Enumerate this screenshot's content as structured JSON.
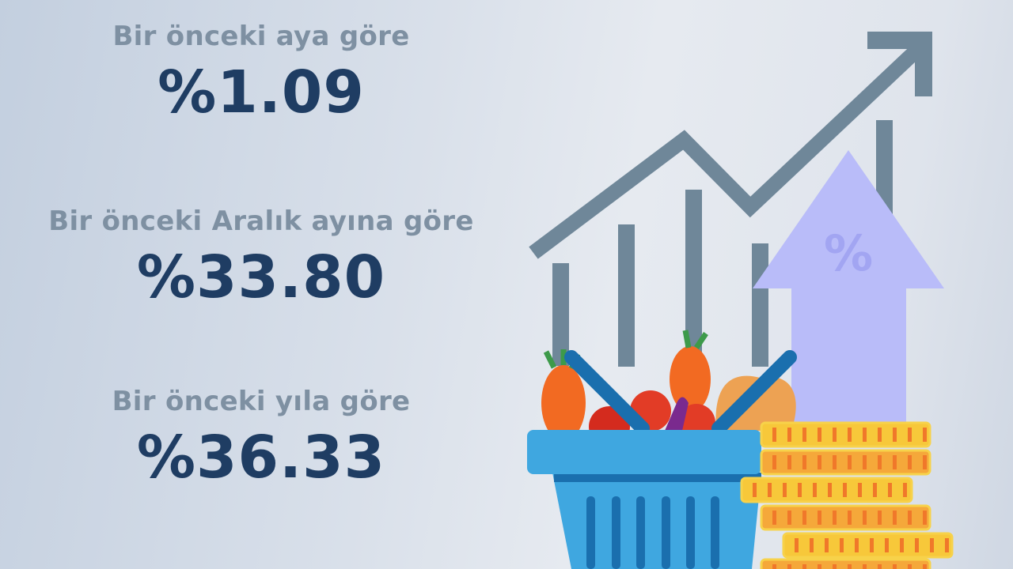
{
  "stats": [
    {
      "label": "Bir önceki aya göre",
      "value": "%1.09"
    },
    {
      "label": "Bir önceki Aralık ayına göre",
      "value": "%33.80"
    },
    {
      "label": "Bir önceki yıla göre",
      "value": "%36.33"
    }
  ],
  "illustration": {
    "percent_symbol": "%",
    "icons": [
      "rising-line-chart-icon",
      "up-arrow-percent-icon",
      "shopping-basket-icon",
      "coin-stack-icon"
    ],
    "colors": {
      "label": "#7e90a2",
      "value": "#1f3d63",
      "chart": "#6f8799",
      "arrow": "#b9bcf9",
      "basket": "#3fa7e0",
      "basket_dark": "#1a6fae",
      "coin": "#f7c83a",
      "coin_stripe": "#f39a2c"
    }
  }
}
